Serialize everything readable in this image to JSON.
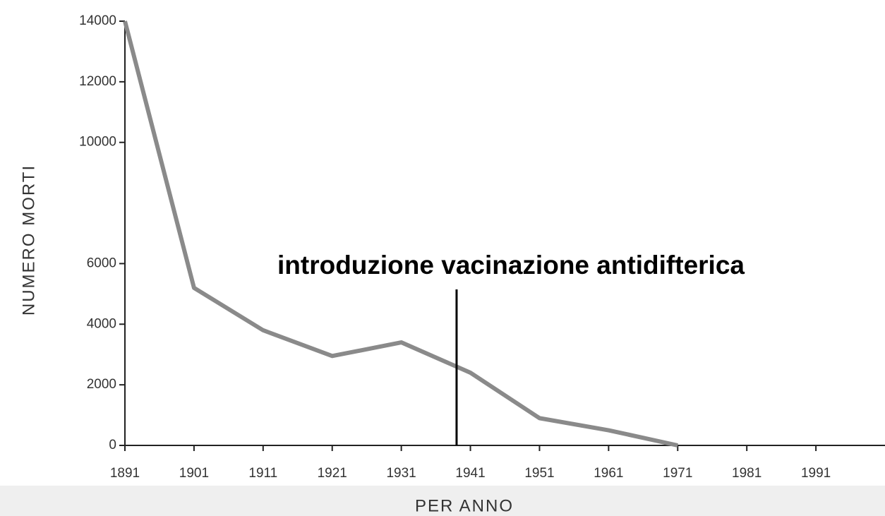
{
  "chart_data": {
    "type": "line",
    "x": [
      1891,
      1901,
      1911,
      1921,
      1931,
      1941,
      1951,
      1961,
      1971
    ],
    "values": [
      14000,
      5200,
      3800,
      2950,
      3400,
      2400,
      900,
      500,
      0
    ],
    "color": "#8a8a8a",
    "xlim": [
      1891,
      2001
    ],
    "xticks": [
      1891,
      1901,
      1911,
      1921,
      1931,
      1941,
      1951,
      1961,
      1971,
      1981,
      1991
    ],
    "ylim": [
      0,
      14000
    ],
    "yticks": [
      0,
      2000,
      4000,
      6000,
      10000,
      12000,
      14000
    ],
    "xlabel": "PER ANNO",
    "ylabel": "NUMERO MORTI",
    "annotation": {
      "text": "introduzione vacinazione antidifterica",
      "x": 1939
    }
  }
}
